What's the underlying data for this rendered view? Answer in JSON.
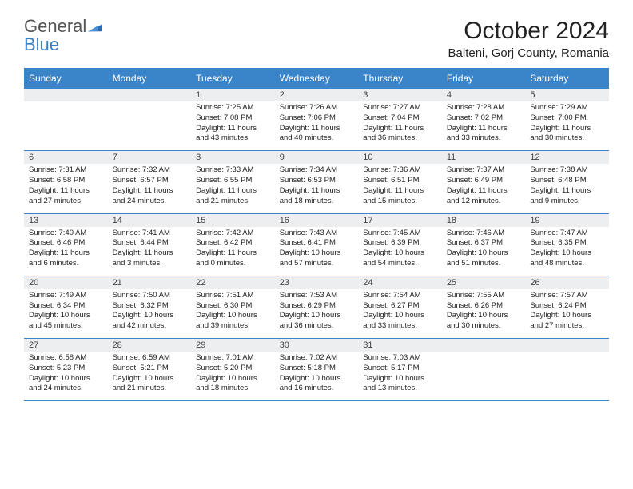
{
  "brand": {
    "part1": "General",
    "part2": "Blue"
  },
  "title": "October 2024",
  "location": "Balteni, Gorj County, Romania",
  "header_bg": "#3a85c9",
  "divider_color": "#3a85c9",
  "daynum_bg": "#eceef0",
  "days": [
    "Sunday",
    "Monday",
    "Tuesday",
    "Wednesday",
    "Thursday",
    "Friday",
    "Saturday"
  ],
  "weeks": [
    [
      {
        "num": "",
        "sunrise": "",
        "sunset": "",
        "daylight": ""
      },
      {
        "num": "",
        "sunrise": "",
        "sunset": "",
        "daylight": ""
      },
      {
        "num": "1",
        "sunrise": "Sunrise: 7:25 AM",
        "sunset": "Sunset: 7:08 PM",
        "daylight": "Daylight: 11 hours and 43 minutes."
      },
      {
        "num": "2",
        "sunrise": "Sunrise: 7:26 AM",
        "sunset": "Sunset: 7:06 PM",
        "daylight": "Daylight: 11 hours and 40 minutes."
      },
      {
        "num": "3",
        "sunrise": "Sunrise: 7:27 AM",
        "sunset": "Sunset: 7:04 PM",
        "daylight": "Daylight: 11 hours and 36 minutes."
      },
      {
        "num": "4",
        "sunrise": "Sunrise: 7:28 AM",
        "sunset": "Sunset: 7:02 PM",
        "daylight": "Daylight: 11 hours and 33 minutes."
      },
      {
        "num": "5",
        "sunrise": "Sunrise: 7:29 AM",
        "sunset": "Sunset: 7:00 PM",
        "daylight": "Daylight: 11 hours and 30 minutes."
      }
    ],
    [
      {
        "num": "6",
        "sunrise": "Sunrise: 7:31 AM",
        "sunset": "Sunset: 6:58 PM",
        "daylight": "Daylight: 11 hours and 27 minutes."
      },
      {
        "num": "7",
        "sunrise": "Sunrise: 7:32 AM",
        "sunset": "Sunset: 6:57 PM",
        "daylight": "Daylight: 11 hours and 24 minutes."
      },
      {
        "num": "8",
        "sunrise": "Sunrise: 7:33 AM",
        "sunset": "Sunset: 6:55 PM",
        "daylight": "Daylight: 11 hours and 21 minutes."
      },
      {
        "num": "9",
        "sunrise": "Sunrise: 7:34 AM",
        "sunset": "Sunset: 6:53 PM",
        "daylight": "Daylight: 11 hours and 18 minutes."
      },
      {
        "num": "10",
        "sunrise": "Sunrise: 7:36 AM",
        "sunset": "Sunset: 6:51 PM",
        "daylight": "Daylight: 11 hours and 15 minutes."
      },
      {
        "num": "11",
        "sunrise": "Sunrise: 7:37 AM",
        "sunset": "Sunset: 6:49 PM",
        "daylight": "Daylight: 11 hours and 12 minutes."
      },
      {
        "num": "12",
        "sunrise": "Sunrise: 7:38 AM",
        "sunset": "Sunset: 6:48 PM",
        "daylight": "Daylight: 11 hours and 9 minutes."
      }
    ],
    [
      {
        "num": "13",
        "sunrise": "Sunrise: 7:40 AM",
        "sunset": "Sunset: 6:46 PM",
        "daylight": "Daylight: 11 hours and 6 minutes."
      },
      {
        "num": "14",
        "sunrise": "Sunrise: 7:41 AM",
        "sunset": "Sunset: 6:44 PM",
        "daylight": "Daylight: 11 hours and 3 minutes."
      },
      {
        "num": "15",
        "sunrise": "Sunrise: 7:42 AM",
        "sunset": "Sunset: 6:42 PM",
        "daylight": "Daylight: 11 hours and 0 minutes."
      },
      {
        "num": "16",
        "sunrise": "Sunrise: 7:43 AM",
        "sunset": "Sunset: 6:41 PM",
        "daylight": "Daylight: 10 hours and 57 minutes."
      },
      {
        "num": "17",
        "sunrise": "Sunrise: 7:45 AM",
        "sunset": "Sunset: 6:39 PM",
        "daylight": "Daylight: 10 hours and 54 minutes."
      },
      {
        "num": "18",
        "sunrise": "Sunrise: 7:46 AM",
        "sunset": "Sunset: 6:37 PM",
        "daylight": "Daylight: 10 hours and 51 minutes."
      },
      {
        "num": "19",
        "sunrise": "Sunrise: 7:47 AM",
        "sunset": "Sunset: 6:35 PM",
        "daylight": "Daylight: 10 hours and 48 minutes."
      }
    ],
    [
      {
        "num": "20",
        "sunrise": "Sunrise: 7:49 AM",
        "sunset": "Sunset: 6:34 PM",
        "daylight": "Daylight: 10 hours and 45 minutes."
      },
      {
        "num": "21",
        "sunrise": "Sunrise: 7:50 AM",
        "sunset": "Sunset: 6:32 PM",
        "daylight": "Daylight: 10 hours and 42 minutes."
      },
      {
        "num": "22",
        "sunrise": "Sunrise: 7:51 AM",
        "sunset": "Sunset: 6:30 PM",
        "daylight": "Daylight: 10 hours and 39 minutes."
      },
      {
        "num": "23",
        "sunrise": "Sunrise: 7:53 AM",
        "sunset": "Sunset: 6:29 PM",
        "daylight": "Daylight: 10 hours and 36 minutes."
      },
      {
        "num": "24",
        "sunrise": "Sunrise: 7:54 AM",
        "sunset": "Sunset: 6:27 PM",
        "daylight": "Daylight: 10 hours and 33 minutes."
      },
      {
        "num": "25",
        "sunrise": "Sunrise: 7:55 AM",
        "sunset": "Sunset: 6:26 PM",
        "daylight": "Daylight: 10 hours and 30 minutes."
      },
      {
        "num": "26",
        "sunrise": "Sunrise: 7:57 AM",
        "sunset": "Sunset: 6:24 PM",
        "daylight": "Daylight: 10 hours and 27 minutes."
      }
    ],
    [
      {
        "num": "27",
        "sunrise": "Sunrise: 6:58 AM",
        "sunset": "Sunset: 5:23 PM",
        "daylight": "Daylight: 10 hours and 24 minutes."
      },
      {
        "num": "28",
        "sunrise": "Sunrise: 6:59 AM",
        "sunset": "Sunset: 5:21 PM",
        "daylight": "Daylight: 10 hours and 21 minutes."
      },
      {
        "num": "29",
        "sunrise": "Sunrise: 7:01 AM",
        "sunset": "Sunset: 5:20 PM",
        "daylight": "Daylight: 10 hours and 18 minutes."
      },
      {
        "num": "30",
        "sunrise": "Sunrise: 7:02 AM",
        "sunset": "Sunset: 5:18 PM",
        "daylight": "Daylight: 10 hours and 16 minutes."
      },
      {
        "num": "31",
        "sunrise": "Sunrise: 7:03 AM",
        "sunset": "Sunset: 5:17 PM",
        "daylight": "Daylight: 10 hours and 13 minutes."
      },
      {
        "num": "",
        "sunrise": "",
        "sunset": "",
        "daylight": ""
      },
      {
        "num": "",
        "sunrise": "",
        "sunset": "",
        "daylight": ""
      }
    ]
  ]
}
